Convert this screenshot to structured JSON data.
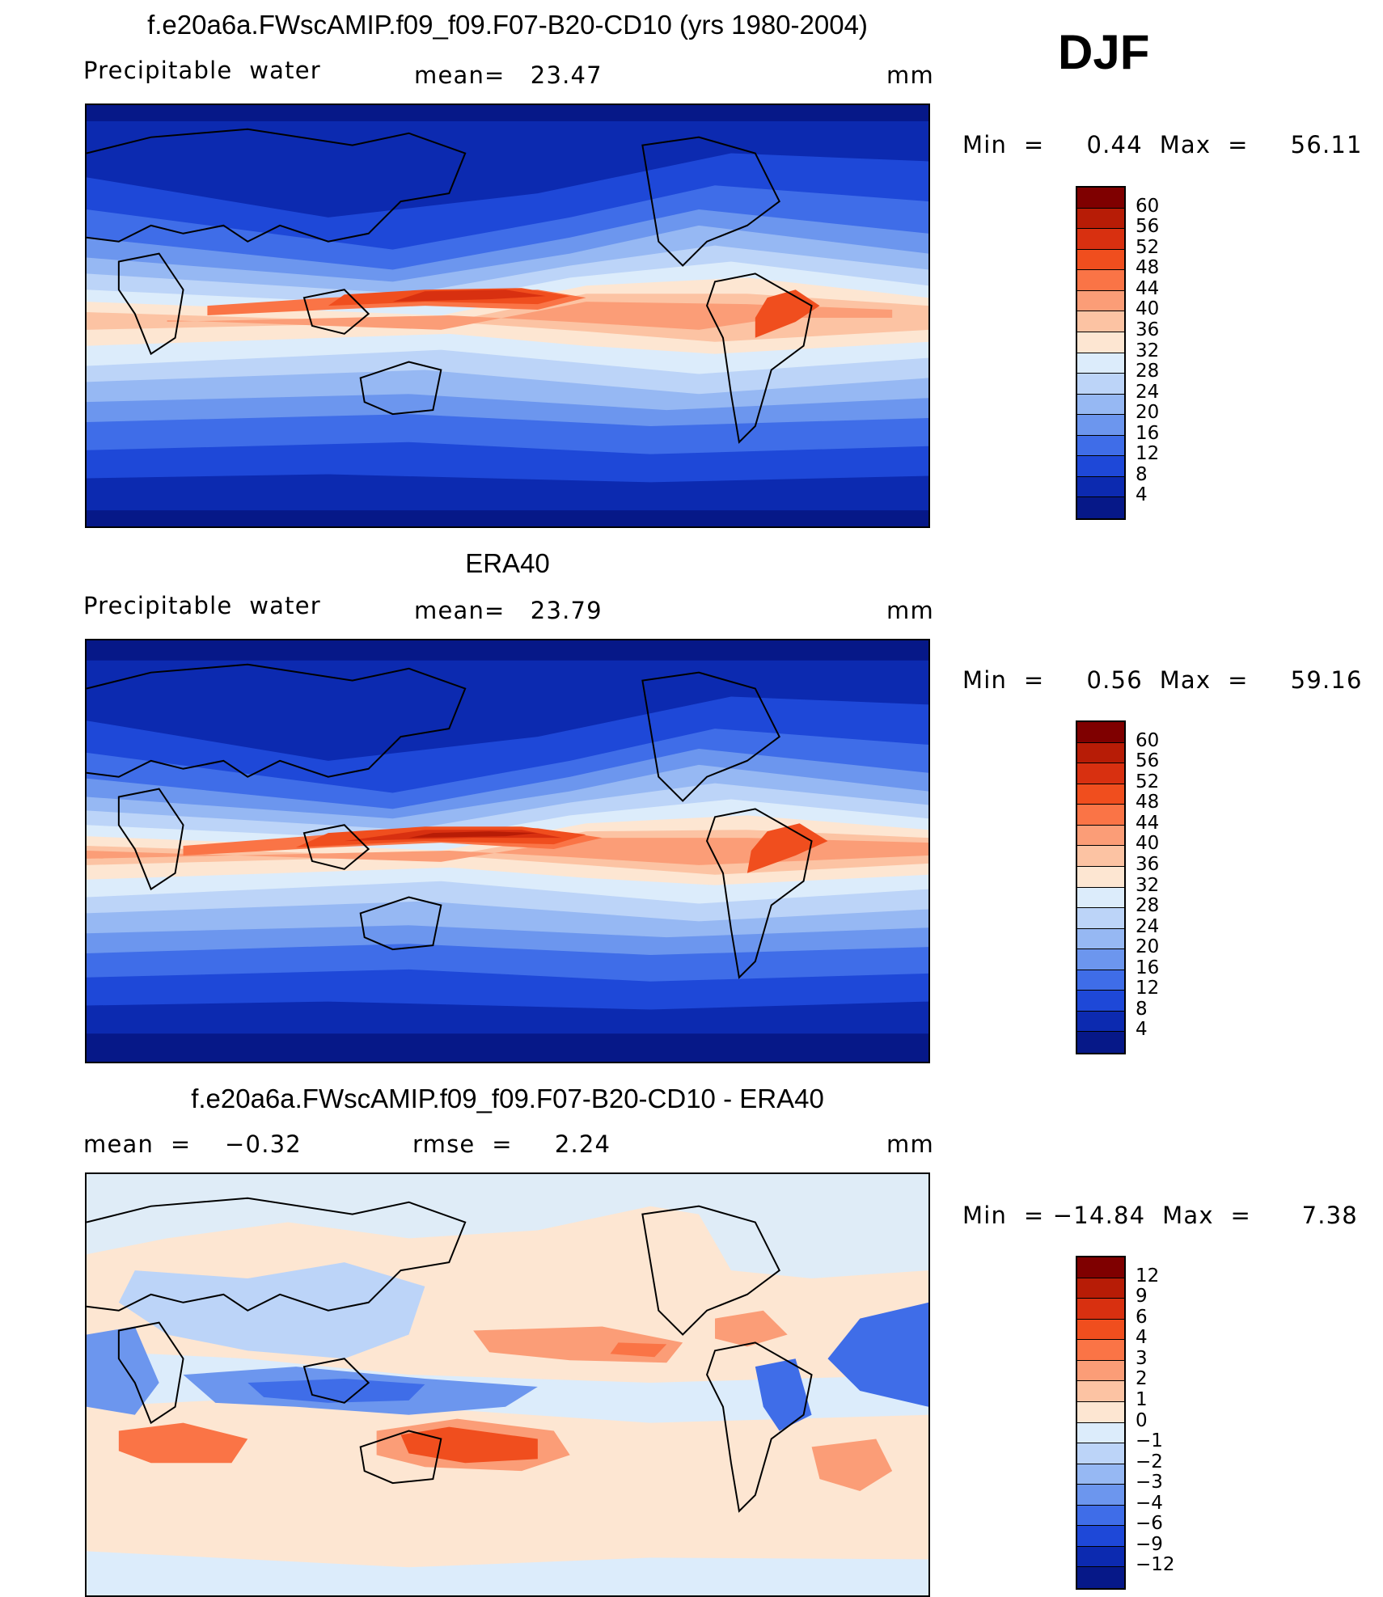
{
  "season": "DJF",
  "panels": [
    {
      "title": "f.e20a6a.FWscAMIP.f09_f09.F07-B20-CD10 (yrs 1980-2004)",
      "left_label": "Precipitable  water",
      "mid_label": "mean=   23.47",
      "units": "mm",
      "minmax": "Min  =     0.44  Max  =     56.11",
      "colorbar": {
        "labels": [
          "60",
          "56",
          "52",
          "48",
          "44",
          "40",
          "36",
          "32",
          "28",
          "24",
          "20",
          "16",
          "12",
          "8",
          "4"
        ],
        "colors": [
          "#7f0000",
          "#b71c06",
          "#d83010",
          "#f04e1e",
          "#fa7446",
          "#fb9d77",
          "#fcc3a3",
          "#fde6d2",
          "#dcecfb",
          "#bcd4f8",
          "#96b8f3",
          "#6c96ee",
          "#3f6de8",
          "#1e48d8",
          "#0c2ab0",
          "#061888"
        ]
      },
      "map_palette": [
        "#061888",
        "#0c2ab0",
        "#1e48d8",
        "#3f6de8",
        "#6c96ee",
        "#96b8f3",
        "#bcd4f8",
        "#dcecfb",
        "#fde6d2",
        "#fcc3a3",
        "#fb9d77",
        "#fa7446",
        "#f04e1e",
        "#d83010",
        "#b71c06",
        "#7f0000"
      ]
    },
    {
      "title": "ERA40",
      "left_label": "Precipitable  water",
      "mid_label": "mean=   23.79",
      "units": "mm",
      "minmax": "Min  =     0.56  Max  =     59.16",
      "colorbar": {
        "labels": [
          "60",
          "56",
          "52",
          "48",
          "44",
          "40",
          "36",
          "32",
          "28",
          "24",
          "20",
          "16",
          "12",
          "8",
          "4"
        ],
        "colors": [
          "#7f0000",
          "#b71c06",
          "#d83010",
          "#f04e1e",
          "#fa7446",
          "#fb9d77",
          "#fcc3a3",
          "#fde6d2",
          "#dcecfb",
          "#bcd4f8",
          "#96b8f3",
          "#6c96ee",
          "#3f6de8",
          "#1e48d8",
          "#0c2ab0",
          "#061888"
        ]
      },
      "map_palette": [
        "#061888",
        "#0c2ab0",
        "#1e48d8",
        "#3f6de8",
        "#6c96ee",
        "#96b8f3",
        "#bcd4f8",
        "#dcecfb",
        "#fde6d2",
        "#fcc3a3",
        "#fb9d77",
        "#fa7446",
        "#f04e1e",
        "#d83010",
        "#b71c06",
        "#7f0000"
      ]
    },
    {
      "title": "f.e20a6a.FWscAMIP.f09_f09.F07-B20-CD10 - ERA40",
      "left_label": "mean  =    −0.32",
      "mid_label": "rmse  =     2.24",
      "units": "mm",
      "minmax": "Min  = −14.84  Max  =      7.38",
      "colorbar": {
        "labels": [
          "12",
          "9",
          "6",
          "4",
          "3",
          "2",
          "1",
          "0",
          "−1",
          "−2",
          "−3",
          "−4",
          "−6",
          "−9",
          "−12"
        ],
        "colors": [
          "#7f0000",
          "#b71c06",
          "#d83010",
          "#f04e1e",
          "#fa7446",
          "#fb9d77",
          "#fcc3a3",
          "#fde6d2",
          "#dcecfb",
          "#bcd4f8",
          "#96b8f3",
          "#6c96ee",
          "#3f6de8",
          "#1e48d8",
          "#0c2ab0",
          "#061888"
        ]
      },
      "map_palette": [
        "#061888",
        "#0c2ab0",
        "#1e48d8",
        "#3f6de8",
        "#6c96ee",
        "#96b8f3",
        "#bcd4f8",
        "#dcecfb",
        "#fde6d2",
        "#fcc3a3",
        "#fb9d77",
        "#fa7446",
        "#f04e1e",
        "#d83010",
        "#b71c06",
        "#7f0000"
      ]
    }
  ]
}
